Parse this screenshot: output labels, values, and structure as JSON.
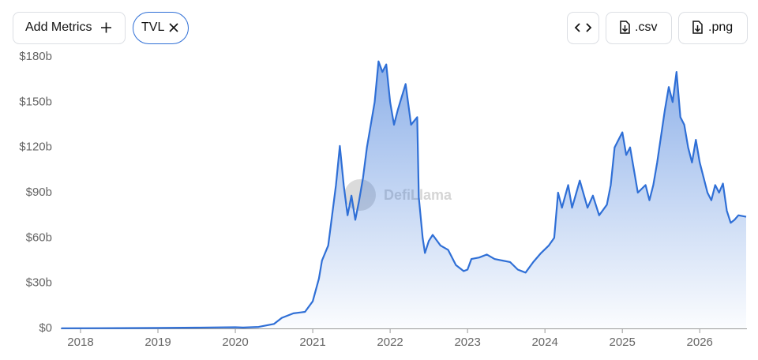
{
  "toolbar": {
    "add_metrics": "Add Metrics",
    "csv": ".csv",
    "png": ".png"
  },
  "chart_data": {
    "type": "area",
    "watermark": "DefiLlama",
    "x": [
      2017.75,
      2018.5,
      2019.0,
      2019.5,
      2020.0,
      2020.1,
      2020.3,
      2020.5,
      2020.6,
      2020.75,
      2020.9,
      2021.0,
      2021.08,
      2021.12,
      2021.2,
      2021.25,
      2021.3,
      2021.35,
      2021.4,
      2021.45,
      2021.5,
      2021.55,
      2021.6,
      2021.65,
      2021.7,
      2021.75,
      2021.8,
      2021.85,
      2021.9,
      2021.95,
      2022.0,
      2022.05,
      2022.1,
      2022.2,
      2022.27,
      2022.35,
      2022.37,
      2022.42,
      2022.45,
      2022.5,
      2022.55,
      2022.65,
      2022.75,
      2022.85,
      2022.95,
      2023.0,
      2023.05,
      2023.15,
      2023.25,
      2023.35,
      2023.45,
      2023.55,
      2023.65,
      2023.75,
      2023.85,
      2023.95,
      2024.05,
      2024.12,
      2024.17,
      2024.22,
      2024.3,
      2024.35,
      2024.45,
      2024.55,
      2024.62,
      2024.7,
      2024.8,
      2024.85,
      2024.9,
      2024.95,
      2025.0,
      2025.05,
      2025.1,
      2025.15,
      2025.2,
      2025.3,
      2025.35,
      2025.4,
      2025.45,
      2025.55,
      2025.6,
      2025.65,
      2025.7,
      2025.75,
      2025.8,
      2025.85,
      2025.9,
      2025.95,
      2026.0,
      2026.1,
      2026.15,
      2026.2,
      2026.25,
      2026.3,
      2026.35,
      2026.4,
      2026.45,
      2026.5,
      2026.6
    ],
    "series": [
      {
        "name": "TVL",
        "color": "#2f6fd6",
        "values": [
          0.1,
          0.2,
          0.3,
          0.5,
          0.8,
          0.6,
          1,
          3,
          7,
          10,
          11,
          18,
          33,
          45,
          55,
          75,
          95,
          121,
          95,
          75,
          88,
          72,
          85,
          100,
          120,
          135,
          150,
          177,
          170,
          175,
          150,
          135,
          145,
          162,
          135,
          140,
          87,
          60,
          50,
          58,
          62,
          55,
          52,
          42,
          38,
          39,
          46,
          47,
          49,
          46,
          45,
          44,
          39,
          37,
          44,
          50,
          55,
          60,
          90,
          80,
          95,
          80,
          98,
          80,
          88,
          75,
          82,
          95,
          120,
          125,
          130,
          115,
          120,
          105,
          90,
          95,
          85,
          95,
          110,
          145,
          160,
          150,
          170,
          140,
          135,
          120,
          110,
          125,
          110,
          90,
          85,
          95,
          90,
          96,
          78,
          70,
          72,
          75,
          74
        ]
      }
    ],
    "xlim": [
      2017.745,
      2026.61
    ],
    "xticks": [
      2018,
      2019,
      2020,
      2021,
      2022,
      2023,
      2024,
      2025,
      2026
    ],
    "ylim": [
      0,
      180
    ],
    "yticks": [
      {
        "value": 0,
        "label": "$0"
      },
      {
        "value": 30,
        "label": "$30b"
      },
      {
        "value": 60,
        "label": "$60b"
      },
      {
        "value": 90,
        "label": "$90b"
      },
      {
        "value": 120,
        "label": "$120b"
      },
      {
        "value": 150,
        "label": "$150b"
      },
      {
        "value": 180,
        "label": "$180b"
      }
    ],
    "grid": false
  }
}
